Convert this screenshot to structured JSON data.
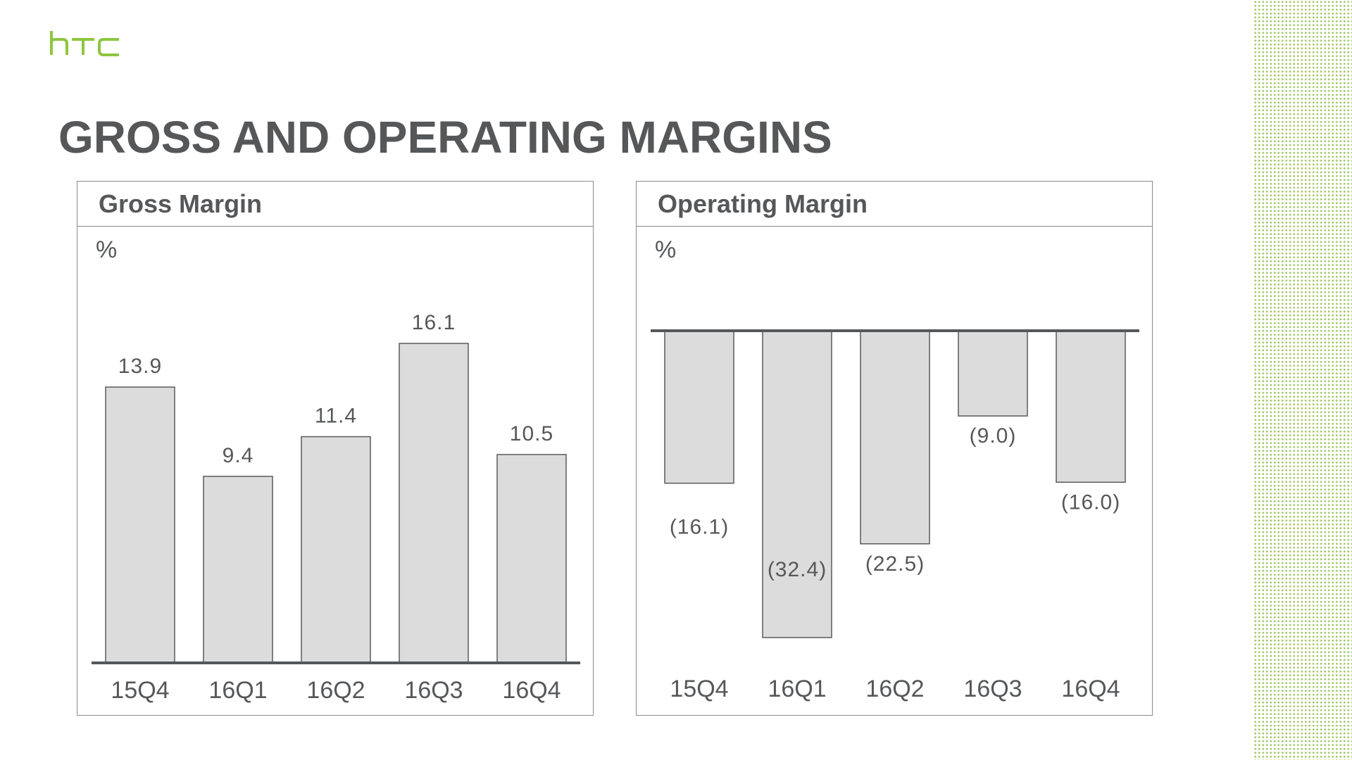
{
  "logo_text": "htc",
  "page_title": "GROSS AND OPERATING MARGINS",
  "colors": {
    "title": "#555759",
    "bar_fill": "#dcdcdc",
    "bar_stroke": "#5a5a5a",
    "logo_green": "#8dc63f",
    "dot_pattern": "#a3c96a"
  },
  "chart_data": [
    {
      "type": "bar",
      "title": "Gross Margin",
      "unit": "%",
      "categories": [
        "15Q4",
        "16Q1",
        "16Q2",
        "16Q3",
        "16Q4"
      ],
      "values": [
        13.9,
        9.4,
        11.4,
        16.1,
        10.5
      ],
      "value_labels": [
        "13.9",
        "9.4",
        "11.4",
        "16.1",
        "10.5"
      ],
      "ylim": [
        0,
        16.1
      ],
      "grid": false,
      "legend": "none"
    },
    {
      "type": "bar",
      "title": "Operating Margin",
      "unit": "%",
      "categories": [
        "15Q4",
        "16Q1",
        "16Q2",
        "16Q3",
        "16Q4"
      ],
      "values": [
        -16.1,
        -32.4,
        -22.5,
        -9.0,
        -16.0
      ],
      "value_labels": [
        "(16.1)",
        "(32.4)",
        "(22.5)",
        "(9.0)",
        "(16.0)"
      ],
      "ylim": [
        -32.4,
        0
      ],
      "grid": false,
      "legend": "none"
    }
  ]
}
